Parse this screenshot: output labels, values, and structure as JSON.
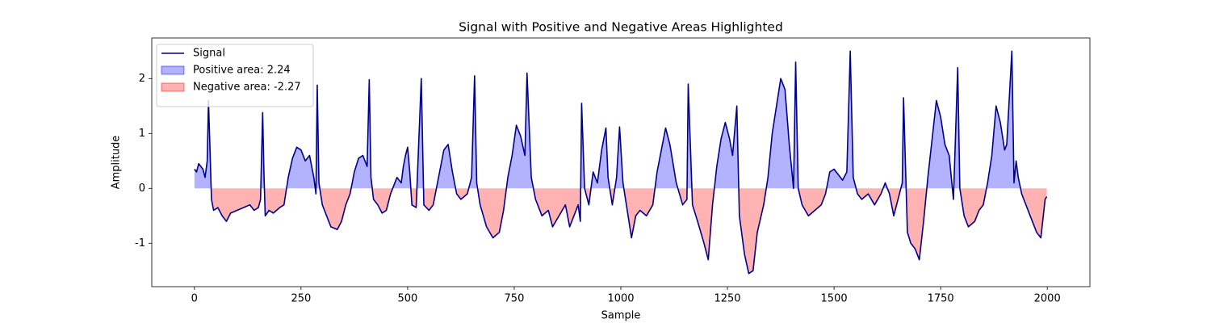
{
  "chart_data": {
    "type": "line",
    "title": "Signal with Positive and Negative Areas Highlighted",
    "x_label": "Sample",
    "y_label": "Amplitude",
    "x": [
      0,
      5,
      10,
      20,
      25,
      30,
      33,
      37,
      40,
      45,
      55,
      65,
      75,
      85,
      100,
      115,
      130,
      140,
      150,
      155,
      160,
      163,
      166,
      175,
      185,
      200,
      210,
      220,
      230,
      240,
      250,
      260,
      270,
      280,
      285,
      288,
      292,
      300,
      310,
      320,
      335,
      345,
      355,
      365,
      375,
      385,
      395,
      405,
      410,
      414,
      420,
      430,
      440,
      450,
      460,
      475,
      485,
      490,
      495,
      500,
      505,
      510,
      520,
      532,
      538,
      550,
      560,
      575,
      585,
      595,
      605,
      615,
      625,
      640,
      650,
      657,
      662,
      670,
      685,
      700,
      715,
      725,
      735,
      745,
      755,
      765,
      775,
      780,
      790,
      800,
      815,
      830,
      840,
      855,
      870,
      880,
      890,
      900,
      905,
      908,
      915,
      925,
      935,
      945,
      955,
      965,
      970,
      980,
      990,
      997,
      1005,
      1015,
      1025,
      1035,
      1045,
      1060,
      1075,
      1085,
      1095,
      1105,
      1115,
      1130,
      1145,
      1155,
      1158,
      1168,
      1180,
      1195,
      1205,
      1215,
      1225,
      1235,
      1245,
      1255,
      1262,
      1272,
      1278,
      1290,
      1300,
      1310,
      1320,
      1335,
      1345,
      1355,
      1365,
      1375,
      1385,
      1395,
      1405,
      1410,
      1416,
      1425,
      1440,
      1455,
      1470,
      1480,
      1490,
      1500,
      1510,
      1520,
      1530,
      1538,
      1545,
      1555,
      1565,
      1580,
      1595,
      1610,
      1620,
      1630,
      1640,
      1650,
      1660,
      1663,
      1672,
      1680,
      1690,
      1700,
      1710,
      1720,
      1730,
      1740,
      1750,
      1760,
      1770,
      1780,
      1790,
      1795,
      1805,
      1815,
      1830,
      1840,
      1850,
      1860,
      1870,
      1880,
      1890,
      1900,
      1905,
      1917,
      1922,
      1927,
      1932,
      1940,
      1950,
      1960,
      1975,
      1985,
      1995,
      1999
    ],
    "series": [
      {
        "name": "Signal",
        "color": "#00008b",
        "values": [
          0.35,
          0.3,
          0.45,
          0.35,
          0.2,
          0.5,
          1.6,
          0.6,
          -0.2,
          -0.4,
          -0.35,
          -0.5,
          -0.6,
          -0.45,
          -0.4,
          -0.35,
          -0.3,
          -0.4,
          -0.35,
          -0.2,
          1.38,
          0.3,
          -0.5,
          -0.4,
          -0.45,
          -0.35,
          -0.3,
          0.2,
          0.55,
          0.75,
          0.7,
          0.5,
          0.6,
          0.2,
          -0.1,
          1.88,
          0.1,
          -0.3,
          -0.5,
          -0.7,
          -0.75,
          -0.6,
          -0.3,
          -0.1,
          0.3,
          0.55,
          0.6,
          0.4,
          1.98,
          0.2,
          -0.2,
          -0.3,
          -0.45,
          -0.4,
          -0.1,
          0.2,
          0.1,
          0.4,
          0.6,
          0.75,
          0.3,
          -0.3,
          -0.35,
          2.0,
          -0.3,
          -0.4,
          -0.3,
          0.3,
          0.7,
          0.8,
          0.3,
          -0.1,
          -0.2,
          -0.1,
          0.2,
          2.05,
          0.1,
          -0.3,
          -0.7,
          -0.9,
          -0.8,
          -0.4,
          0.2,
          0.6,
          1.15,
          0.95,
          0.6,
          2.1,
          0.2,
          -0.2,
          -0.5,
          -0.4,
          -0.7,
          -0.5,
          -0.3,
          -0.7,
          -0.5,
          -0.3,
          -0.6,
          1.55,
          0.0,
          -0.3,
          0.3,
          0.1,
          0.7,
          1.1,
          0.2,
          -0.3,
          0.2,
          1.12,
          0.1,
          -0.4,
          -0.9,
          -0.5,
          -0.4,
          -0.5,
          -0.3,
          0.3,
          0.7,
          1.1,
          0.8,
          0.1,
          -0.3,
          -0.2,
          1.9,
          -0.3,
          -0.6,
          -1.0,
          -1.3,
          -0.3,
          0.4,
          0.9,
          1.2,
          0.9,
          0.6,
          1.5,
          -0.5,
          -1.2,
          -1.55,
          -1.5,
          -0.8,
          -0.3,
          0.2,
          1.0,
          1.5,
          2.0,
          1.8,
          0.8,
          0.0,
          2.3,
          0.0,
          -0.3,
          -0.5,
          -0.4,
          -0.3,
          -0.1,
          0.3,
          0.35,
          0.25,
          0.15,
          0.3,
          2.5,
          0.2,
          -0.1,
          -0.2,
          -0.1,
          -0.3,
          -0.1,
          0.1,
          -0.1,
          -0.5,
          -0.2,
          0.1,
          1.65,
          -0.8,
          -1.0,
          -1.1,
          -1.3,
          -0.6,
          0.2,
          0.9,
          1.6,
          1.3,
          0.8,
          0.6,
          -0.2,
          2.2,
          0.0,
          -0.5,
          -0.7,
          -0.6,
          -0.4,
          -0.3,
          0.1,
          0.6,
          1.5,
          1.2,
          0.7,
          0.8,
          2.5,
          0.1,
          0.5,
          0.2,
          -0.1,
          -0.3,
          -0.5,
          -0.8,
          -0.9,
          -0.2,
          -0.15
        ]
      }
    ],
    "areas": [
      {
        "name": "Positive area: 2.24",
        "color": "#0000ff",
        "alpha": 0.3,
        "where": "above"
      },
      {
        "name": "Negative area: -2.27",
        "color": "#ff0000",
        "alpha": 0.3,
        "where": "below"
      }
    ],
    "xlim": [
      -100,
      2100
    ],
    "xticks": [
      0,
      250,
      500,
      750,
      1000,
      1250,
      1500,
      1750,
      2000
    ],
    "ylim": [
      -1.79,
      2.74
    ],
    "yticks": [
      -1,
      0,
      1,
      2
    ],
    "grid": false,
    "legend": "upper left"
  }
}
